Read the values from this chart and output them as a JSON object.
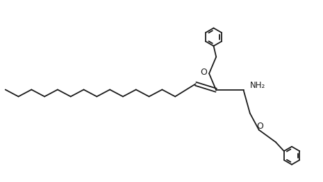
{
  "background_color": "#ffffff",
  "line_color": "#1a1a1a",
  "line_width": 1.3,
  "text_color": "#1a1a1a",
  "NH2_label": "NH₂",
  "O_label": "O",
  "figsize": [
    4.65,
    2.63
  ],
  "dpi": 100
}
